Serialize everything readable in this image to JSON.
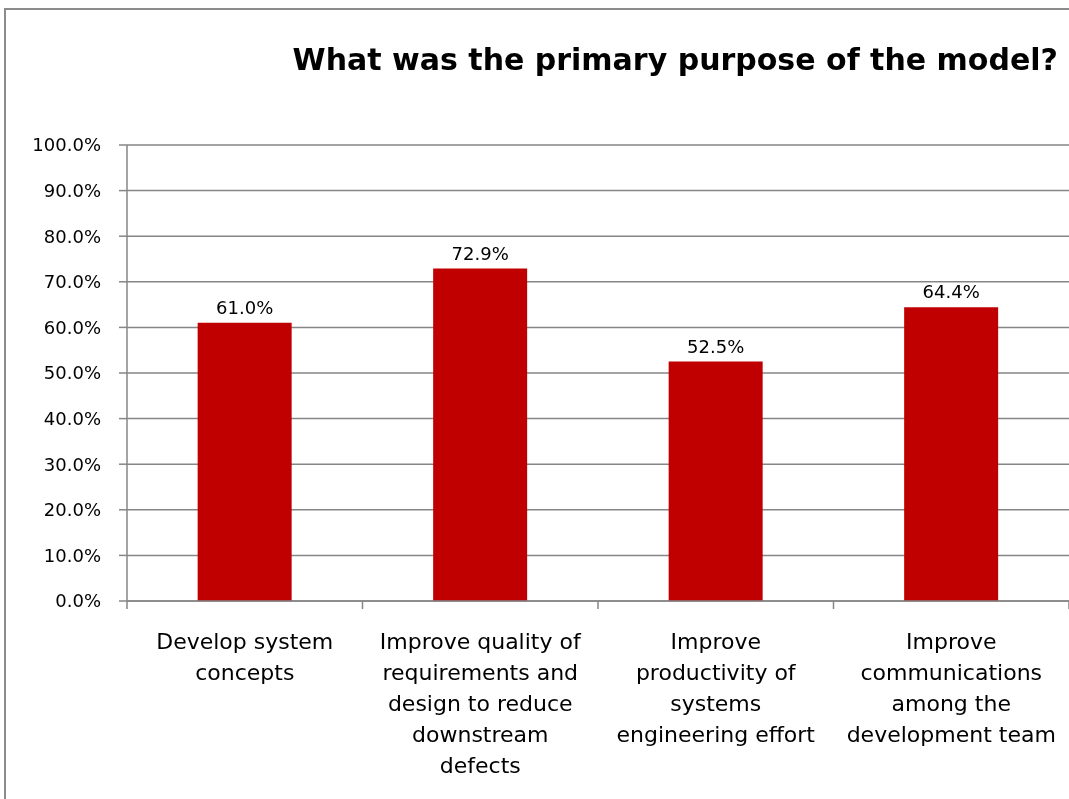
{
  "chart_data": {
    "type": "bar",
    "title": "What was the primary purpose of the model?",
    "categories": [
      "Develop system concepts",
      "Improve quality of requirements and design to reduce downstream defects",
      "Improve productivity of systems engineering effort",
      "Improve communications among the development team"
    ],
    "values": [
      61.0,
      72.9,
      52.5,
      64.4
    ],
    "color": "#c00000",
    "value_labels": [
      "61.0%",
      "72.9%",
      "52.5%",
      "64.4%"
    ],
    "ylim": [
      0,
      100
    ],
    "yticks": [
      {
        "value": 0,
        "label": "0.0%"
      },
      {
        "value": 10,
        "label": "10.0%"
      },
      {
        "value": 20,
        "label": "20.0%"
      },
      {
        "value": 30,
        "label": "30.0%"
      },
      {
        "value": 40,
        "label": "40.0%"
      },
      {
        "value": 50,
        "label": "50.0%"
      },
      {
        "value": 60,
        "label": "60.0%"
      },
      {
        "value": 70,
        "label": "70.0%"
      },
      {
        "value": 80,
        "label": "80.0%"
      },
      {
        "value": 90,
        "label": "90.0%"
      },
      {
        "value": 100,
        "label": "100.0%"
      }
    ],
    "grid": "y"
  }
}
